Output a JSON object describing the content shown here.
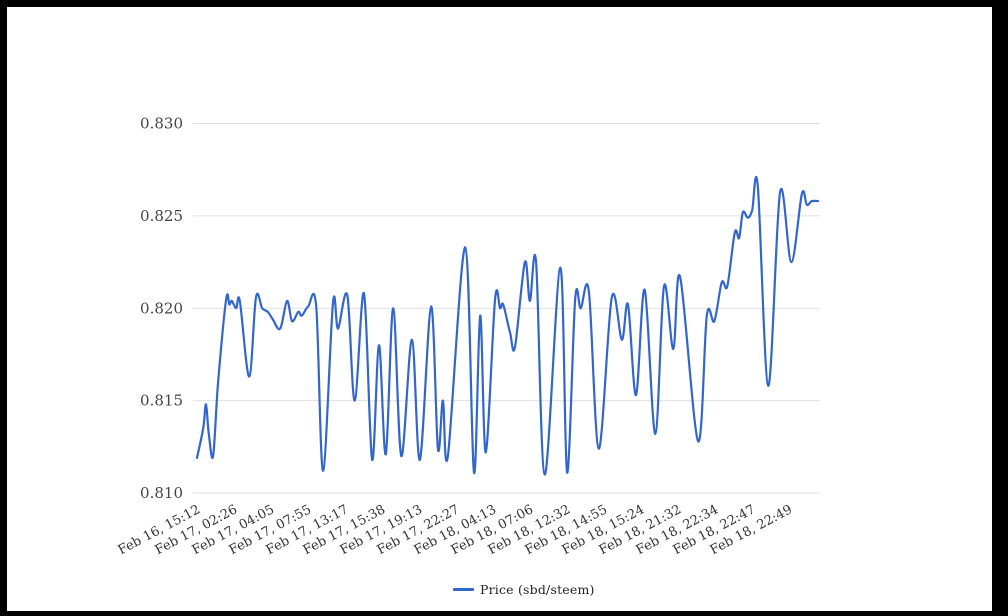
{
  "window": {
    "background": "#ffffff",
    "frame_color": "#000000"
  },
  "chart_data": {
    "type": "line",
    "title": "",
    "legend": {
      "position": "bottom",
      "label": "Price (sbd/steem)"
    },
    "grid": true,
    "x_axis": {
      "tick_labels": [
        "Feb 16, 15:12",
        "Feb 17, 02:26",
        "Feb 17, 04:05",
        "Feb 17, 07:55",
        "Feb 17, 13:17",
        "Feb 17, 15:38",
        "Feb 17, 19:13",
        "Feb 17, 22:27",
        "Feb 18, 04:13",
        "Feb 18, 07:06",
        "Feb 18, 12:32",
        "Feb 18, 14:55",
        "Feb 18, 15:24",
        "Feb 18, 21:32",
        "Feb 18, 22:34",
        "Feb 18, 22:47",
        "Feb 18, 22:49"
      ],
      "label_rotation_deg": -28
    },
    "y_axis": {
      "tick_labels": [
        "0.810",
        "0.815",
        "0.820",
        "0.825",
        "0.830"
      ],
      "ticks": [
        0.81,
        0.815,
        0.82,
        0.825,
        0.83
      ],
      "min": 0.81,
      "max": 0.83
    },
    "colors": {
      "line": "#3366cc",
      "gridline": "#e0e0e0",
      "y_label": "#444444",
      "x_label": "#333333",
      "legend_text": "#222222"
    },
    "series": [
      {
        "name": "Price (sbd/steem)",
        "color": "#3366cc",
        "points": [
          [
            0.0,
            0.8119
          ],
          [
            0.01,
            0.8135
          ],
          [
            0.0145,
            0.8148
          ],
          [
            0.019,
            0.8132
          ],
          [
            0.026,
            0.812
          ],
          [
            0.034,
            0.816
          ],
          [
            0.047,
            0.8205
          ],
          [
            0.052,
            0.8202
          ],
          [
            0.056,
            0.8204
          ],
          [
            0.063,
            0.82
          ],
          [
            0.069,
            0.8204
          ],
          [
            0.084,
            0.8163
          ],
          [
            0.095,
            0.8206
          ],
          [
            0.105,
            0.82
          ],
          [
            0.114,
            0.8198
          ],
          [
            0.122,
            0.8194
          ],
          [
            0.134,
            0.8189
          ],
          [
            0.145,
            0.8204
          ],
          [
            0.153,
            0.8193
          ],
          [
            0.163,
            0.8198
          ],
          [
            0.169,
            0.8196
          ],
          [
            0.179,
            0.8201
          ],
          [
            0.192,
            0.8201
          ],
          [
            0.203,
            0.8112
          ],
          [
            0.219,
            0.8203
          ],
          [
            0.227,
            0.8189
          ],
          [
            0.242,
            0.8207
          ],
          [
            0.254,
            0.815
          ],
          [
            0.269,
            0.8208
          ],
          [
            0.282,
            0.8118
          ],
          [
            0.293,
            0.818
          ],
          [
            0.304,
            0.8121
          ],
          [
            0.316,
            0.82
          ],
          [
            0.329,
            0.812
          ],
          [
            0.346,
            0.8183
          ],
          [
            0.359,
            0.8118
          ],
          [
            0.377,
            0.8201
          ],
          [
            0.388,
            0.8124
          ],
          [
            0.396,
            0.815
          ],
          [
            0.404,
            0.812
          ],
          [
            0.432,
            0.8233
          ],
          [
            0.446,
            0.8111
          ],
          [
            0.456,
            0.8196
          ],
          [
            0.465,
            0.8122
          ],
          [
            0.48,
            0.8205
          ],
          [
            0.488,
            0.82
          ],
          [
            0.493,
            0.8202
          ],
          [
            0.504,
            0.8187
          ],
          [
            0.512,
            0.8179
          ],
          [
            0.528,
            0.8225
          ],
          [
            0.536,
            0.8204
          ],
          [
            0.546,
            0.8225
          ],
          [
            0.56,
            0.811
          ],
          [
            0.585,
            0.8222
          ],
          [
            0.596,
            0.8111
          ],
          [
            0.609,
            0.8205
          ],
          [
            0.618,
            0.82
          ],
          [
            0.631,
            0.8209
          ],
          [
            0.647,
            0.8124
          ],
          [
            0.668,
            0.8206
          ],
          [
            0.684,
            0.8183
          ],
          [
            0.694,
            0.8202
          ],
          [
            0.707,
            0.8153
          ],
          [
            0.721,
            0.821
          ],
          [
            0.738,
            0.8132
          ],
          [
            0.752,
            0.8212
          ],
          [
            0.767,
            0.8178
          ],
          [
            0.778,
            0.8217
          ],
          [
            0.807,
            0.8128
          ],
          [
            0.821,
            0.8196
          ],
          [
            0.833,
            0.8193
          ],
          [
            0.845,
            0.8214
          ],
          [
            0.854,
            0.8212
          ],
          [
            0.866,
            0.8241
          ],
          [
            0.873,
            0.8238
          ],
          [
            0.879,
            0.8252
          ],
          [
            0.887,
            0.8249
          ],
          [
            0.894,
            0.8253
          ],
          [
            0.903,
            0.8266
          ],
          [
            0.92,
            0.8158
          ],
          [
            0.939,
            0.8263
          ],
          [
            0.957,
            0.8225
          ],
          [
            0.974,
            0.8262
          ],
          [
            0.982,
            0.8256
          ],
          [
            0.99,
            0.8258
          ],
          [
            1.0,
            0.8258
          ]
        ]
      }
    ]
  }
}
